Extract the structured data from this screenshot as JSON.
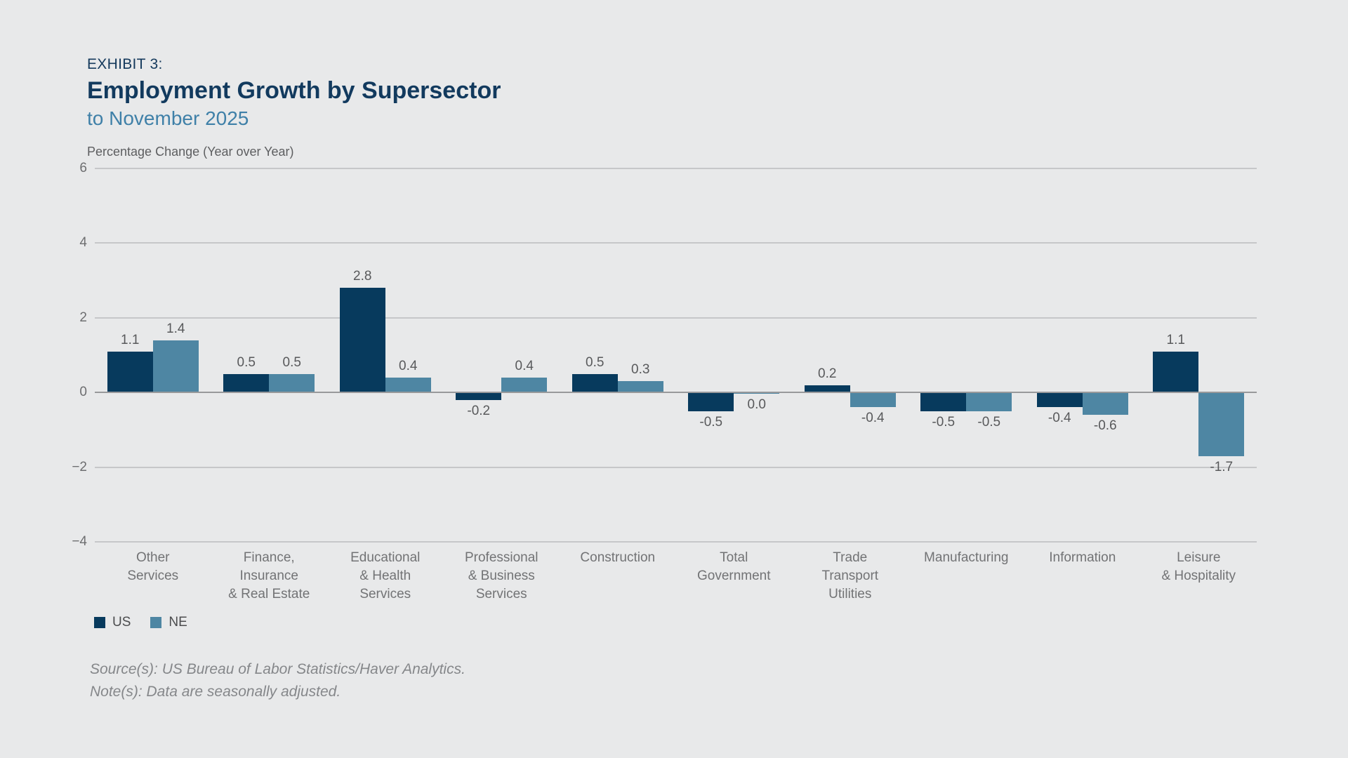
{
  "header": {
    "exhibit_label": "EXHIBIT 3:",
    "title": "Employment Growth by Supersector",
    "subtitle": "to November 2025"
  },
  "chart_data": {
    "type": "bar",
    "axis_title": "Percentage Change (Year over Year)",
    "categories": [
      "Other\nServices",
      "Finance,\nInsurance\n& Real Estate",
      "Educational\n& Health\nServices",
      "Professional\n& Business\nServices",
      "Construction",
      "Total\nGovernment",
      "Trade\nTransport\nUtilities",
      "Manufacturing",
      "Information",
      "Leisure\n& Hospitality"
    ],
    "series": [
      {
        "name": "US",
        "color": "#073a5d",
        "values": [
          1.1,
          0.5,
          2.8,
          -0.2,
          0.5,
          -0.5,
          0.2,
          -0.5,
          -0.4,
          1.1
        ]
      },
      {
        "name": "NE",
        "color": "#4e86a3",
        "values": [
          1.4,
          0.5,
          0.4,
          0.4,
          0.3,
          0.0,
          -0.4,
          -0.5,
          -0.6,
          -1.7
        ]
      }
    ],
    "ylim": [
      -4,
      6
    ],
    "ytick_step": 2,
    "grid": true,
    "legend_position": "bottom-left",
    "value_labels": true,
    "colors": {
      "background": "#e8e9ea",
      "gridline": "#c6c7c9",
      "zero_line": "#98999b"
    }
  },
  "footer": {
    "source": "Source(s): US Bureau of Labor Statistics/Haver Analytics.",
    "note": "Note(s): Data are seasonally adjusted."
  }
}
